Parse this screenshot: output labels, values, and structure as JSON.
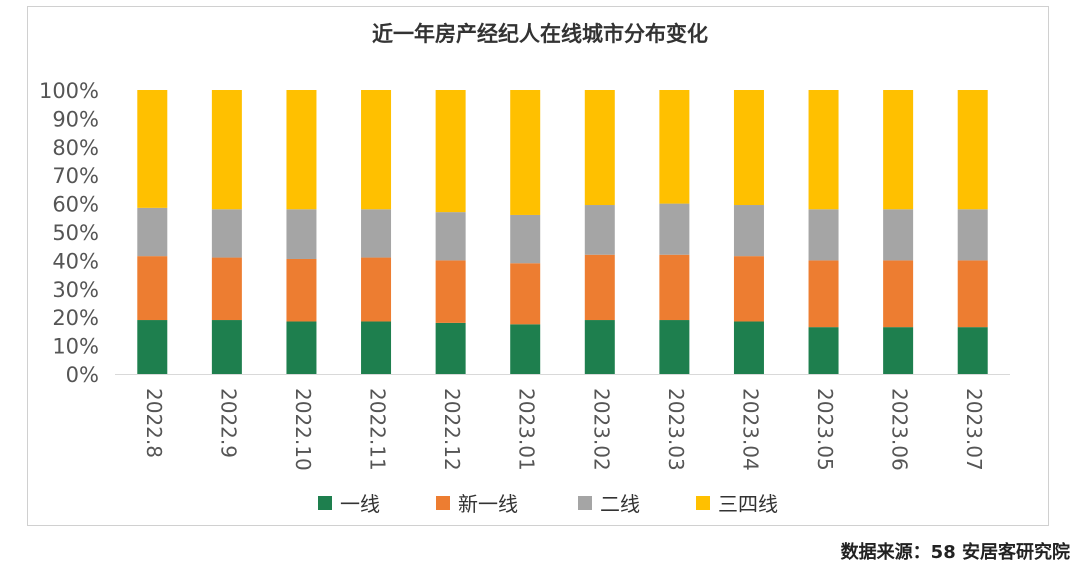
{
  "chart_data": {
    "type": "bar",
    "stacked": true,
    "title": "近一年房产经纪人在线城市分布变化",
    "categories": [
      "2022.8",
      "2022.9",
      "2022.10",
      "2022.11",
      "2022.12",
      "2023.01",
      "2023.02",
      "2023.03",
      "2023.04",
      "2023.05",
      "2023.06",
      "2023.07"
    ],
    "series": [
      {
        "name": "一线",
        "color": "#1e7f4e",
        "values": [
          19,
          19,
          18.5,
          18.5,
          18,
          17.5,
          19,
          19,
          18.5,
          16.5,
          16.5,
          16.5
        ]
      },
      {
        "name": "新一线",
        "color": "#ed7d31",
        "values": [
          22.5,
          22,
          22,
          22.5,
          22,
          21.5,
          23,
          23,
          23,
          23.5,
          23.5,
          23.5
        ]
      },
      {
        "name": "二线",
        "color": "#a5a5a5",
        "values": [
          17,
          17,
          17.5,
          17,
          17,
          17,
          17.5,
          18,
          18,
          18,
          18,
          18
        ]
      },
      {
        "name": "三四线",
        "color": "#ffc000",
        "values": [
          41.5,
          42,
          42,
          42,
          43,
          44,
          40.5,
          40,
          40.5,
          42,
          42,
          42
        ]
      }
    ],
    "yticks": [
      "0%",
      "10%",
      "20%",
      "30%",
      "40%",
      "50%",
      "60%",
      "70%",
      "80%",
      "90%",
      "100%"
    ],
    "ylim": [
      0,
      100
    ],
    "xlabel": "",
    "ylabel": "",
    "legend_position": "bottom"
  },
  "source": "数据来源：58 安居客研究院"
}
